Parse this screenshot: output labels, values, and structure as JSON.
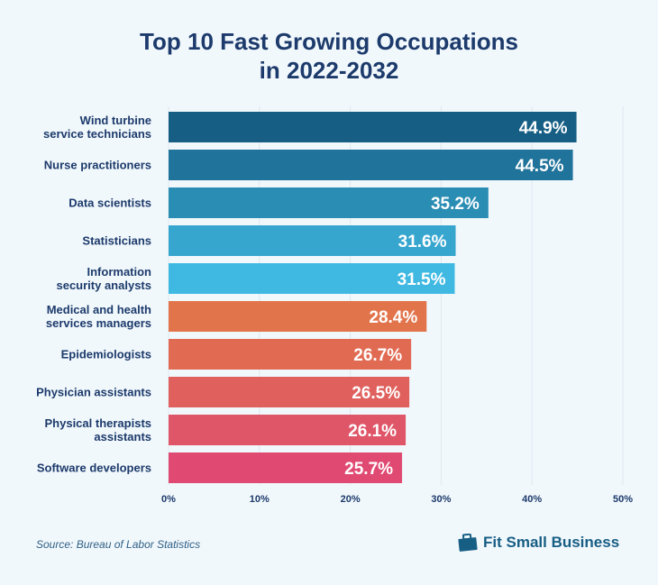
{
  "chart_data": {
    "type": "bar",
    "orientation": "horizontal",
    "title": "Top 10 Fast Growing Occupations in 2022-2032",
    "title_lines": [
      "Top 10 Fast Growing Occupations",
      "in 2022-2032"
    ],
    "categories": [
      [
        "Wind turbine",
        "service technicians"
      ],
      [
        "Nurse practitioners"
      ],
      [
        "Data scientists"
      ],
      [
        "Statisticians"
      ],
      [
        "Information",
        "security analysts"
      ],
      [
        "Medical and health",
        "services managers"
      ],
      [
        "Epidemiologists"
      ],
      [
        "Physician assistants"
      ],
      [
        "Physical therapists",
        "assistants"
      ],
      [
        "Software developers"
      ]
    ],
    "values": [
      44.9,
      44.5,
      35.2,
      31.6,
      31.5,
      28.4,
      26.7,
      26.5,
      26.1,
      25.7
    ],
    "value_labels": [
      "44.9%",
      "44.5%",
      "35.2%",
      "31.6%",
      "31.5%",
      "28.4%",
      "26.7%",
      "26.5%",
      "26.1%",
      "25.7%"
    ],
    "colors": [
      "#175e84",
      "#20739a",
      "#2a8db3",
      "#37a6cf",
      "#3fb9e2",
      "#e2744b",
      "#e16a53",
      "#e0605d",
      "#df5669",
      "#e04a72"
    ],
    "xlim": [
      0,
      50
    ],
    "xticks": [
      0,
      10,
      20,
      30,
      40,
      50
    ],
    "xtick_labels": [
      "0%",
      "10%",
      "20%",
      "30%",
      "40%",
      "50%"
    ],
    "grid": true,
    "xlabel": "",
    "ylabel": ""
  },
  "footer": {
    "source": "Source:  Bureau of Labor Statistics",
    "brand": "Fit Small Business",
    "brand_icon": "briefcase-icon"
  }
}
